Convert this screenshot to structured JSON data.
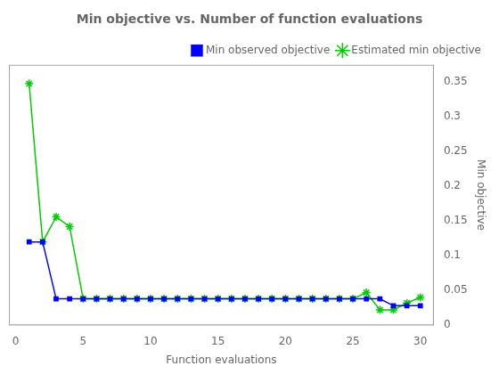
{
  "chart_data": {
    "type": "line",
    "title": "Min objective vs. Number of function evaluations",
    "xlabel": "Function evaluations",
    "ylabel": "Min objective",
    "x": [
      1,
      2,
      3,
      4,
      5,
      6,
      7,
      8,
      9,
      10,
      11,
      12,
      13,
      14,
      15,
      16,
      17,
      18,
      19,
      20,
      21,
      22,
      23,
      24,
      25,
      26,
      27,
      28,
      29,
      30
    ],
    "series": [
      {
        "name": "Min observed objective",
        "color": "#0000FF",
        "marker": "square",
        "values": [
          0.12,
          0.12,
          0.038,
          0.038,
          0.038,
          0.038,
          0.038,
          0.038,
          0.038,
          0.038,
          0.038,
          0.038,
          0.038,
          0.038,
          0.038,
          0.038,
          0.038,
          0.038,
          0.038,
          0.038,
          0.038,
          0.038,
          0.038,
          0.038,
          0.038,
          0.038,
          0.038,
          0.028,
          0.028,
          0.028
        ]
      },
      {
        "name": "Estimated min objective",
        "color": "#00CC00",
        "marker": "star",
        "values": [
          0.348,
          0.12,
          0.156,
          0.142,
          0.038,
          0.038,
          0.038,
          0.038,
          0.038,
          0.038,
          0.038,
          0.038,
          0.038,
          0.038,
          0.038,
          0.038,
          0.038,
          0.038,
          0.038,
          0.038,
          0.038,
          0.038,
          0.038,
          0.038,
          0.038,
          0.047,
          0.022,
          0.022,
          0.032,
          0.04
        ]
      }
    ],
    "xlim": [
      -0.5,
      31
    ],
    "ylim": [
      0,
      0.375
    ],
    "xticks": [
      0,
      5,
      10,
      15,
      20,
      25,
      30
    ],
    "yticks": [
      0,
      0.05,
      0.1,
      0.15,
      0.2,
      0.25,
      0.3,
      0.35
    ],
    "grid": false,
    "legend": "upper right"
  }
}
